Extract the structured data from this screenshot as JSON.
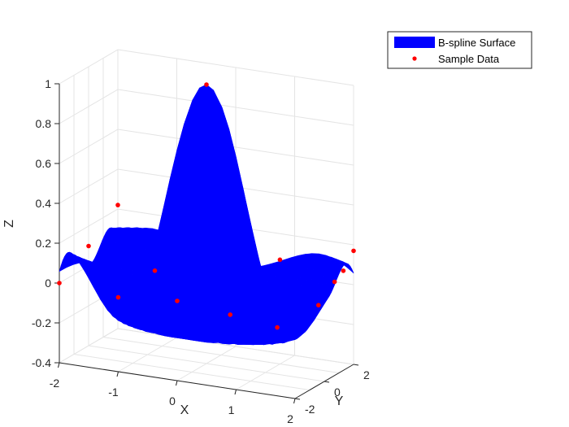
{
  "chart_data": {
    "type": "surface",
    "title": "",
    "xlabel": "X",
    "ylabel": "Y",
    "zlabel": "Z",
    "xlim": [
      -2,
      2
    ],
    "ylim": [
      -2,
      2
    ],
    "zlim": [
      -0.4,
      1
    ],
    "x_ticks": [
      "-2",
      "-1",
      "0",
      "1",
      "2"
    ],
    "y_ticks": [
      "-2",
      "0",
      "2"
    ],
    "z_ticks": [
      "-0.4",
      "-0.2",
      "0",
      "0.2",
      "0.4",
      "0.6",
      "0.8",
      "1"
    ],
    "grid": true,
    "legend_position": "top-right",
    "surface": {
      "name": "B-spline Surface",
      "color": "#0000ff",
      "function": "sin(pi*r)/(pi*r), r = sqrt(x^2 + y^2)"
    },
    "samples": {
      "name": "Sample Data",
      "color": "#ff0000",
      "points": [
        {
          "x": 0,
          "y": 0,
          "z": 1.0
        },
        {
          "x": -2,
          "y": -2,
          "z": 0.0
        },
        {
          "x": -2,
          "y": 0,
          "z": 0.1
        },
        {
          "x": -2,
          "y": 2,
          "z": 0.22
        },
        {
          "x": -1.2,
          "y": -1.2,
          "z": -0.07
        },
        {
          "x": -1,
          "y": 0.5,
          "z": 0.0
        },
        {
          "x": 0,
          "y": -2,
          "z": 0.0
        },
        {
          "x": 0.8,
          "y": -1.6,
          "z": -0.05
        },
        {
          "x": 1.5,
          "y": -1.2,
          "z": -0.1
        },
        {
          "x": 2,
          "y": 0.7,
          "z": 0.07
        },
        {
          "x": 2,
          "y": -0.4,
          "z": 0.0
        },
        {
          "x": 2,
          "y": 1.3,
          "z": 0.1
        },
        {
          "x": 2,
          "y": 2,
          "z": 0.17
        },
        {
          "x": 0.8,
          "y": 1.8,
          "z": 0.08
        }
      ]
    }
  }
}
